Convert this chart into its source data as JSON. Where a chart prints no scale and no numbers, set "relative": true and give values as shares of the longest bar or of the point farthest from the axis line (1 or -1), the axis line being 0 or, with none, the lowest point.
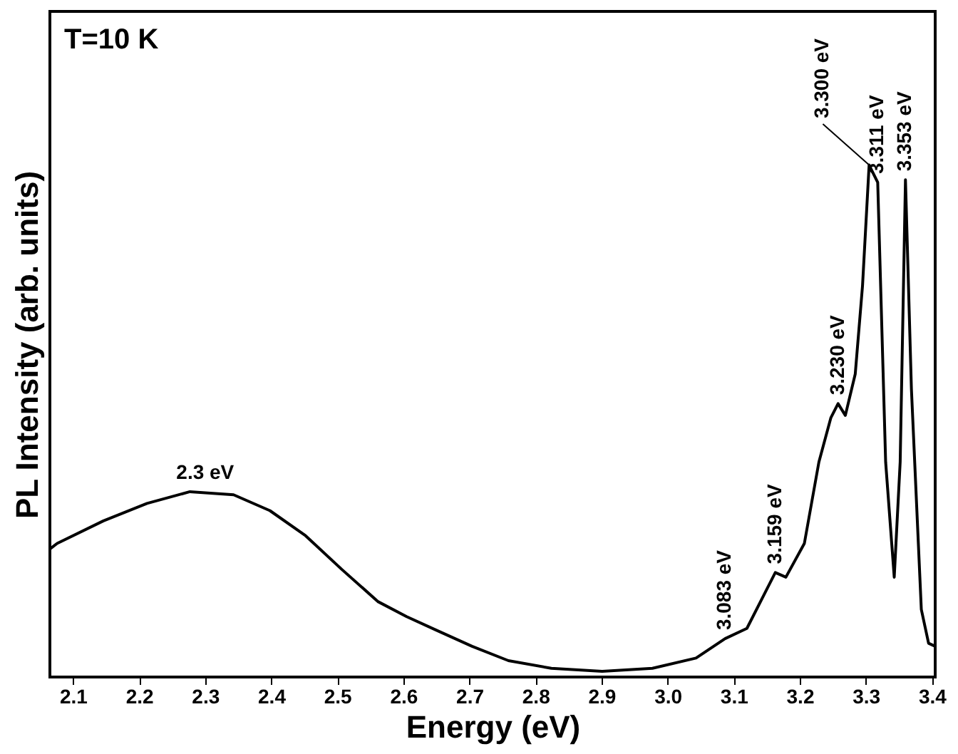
{
  "chart_data": {
    "type": "line",
    "relative": true,
    "xlabel": "Energy (eV)",
    "ylabel": "PL Intensity (arb. units)",
    "color": "#000000",
    "xlim": [
      2.065,
      3.405
    ],
    "xticks": [
      2.1,
      2.2,
      2.3,
      2.4,
      2.5,
      2.6,
      2.7,
      2.8,
      2.9,
      {
        "value": 3,
        "label": "3.0"
      },
      3.1,
      3.2,
      3.3,
      3.4
    ],
    "grid": false,
    "x": [
      2.065,
      2.076,
      2.146,
      2.212,
      2.277,
      2.343,
      2.398,
      2.452,
      2.507,
      2.562,
      2.605,
      2.649,
      2.704,
      2.759,
      2.824,
      2.901,
      2.977,
      3.043,
      3.087,
      3.12,
      3.146,
      3.163,
      3.179,
      3.207,
      3.229,
      3.247,
      3.258,
      3.269,
      3.284,
      3.295,
      3.305,
      3.318,
      3.33,
      3.343,
      3.352,
      3.36,
      3.369,
      3.384,
      3.395,
      3.405
    ],
    "values": [
      0.25,
      0.261,
      0.305,
      0.339,
      0.362,
      0.356,
      0.325,
      0.276,
      0.21,
      0.147,
      0.118,
      0.092,
      0.06,
      0.032,
      0.017,
      0.011,
      0.017,
      0.037,
      0.075,
      0.095,
      0.161,
      0.204,
      0.195,
      0.261,
      0.42,
      0.506,
      0.534,
      0.511,
      0.592,
      0.764,
      1.0,
      0.966,
      0.42,
      0.195,
      0.42,
      0.971,
      0.563,
      0.132,
      0.066,
      0.06
    ],
    "annotations": [
      "T=10 K",
      {
        "text": "2.3 eV",
        "x": 2.3,
        "y": 0.362
      },
      {
        "text": "3.083 eV",
        "x": 3.087,
        "y": 0.075
      },
      {
        "text": "3.159 eV",
        "x": 3.163,
        "y": 0.204
      },
      {
        "text": "3.230 eV",
        "x": 3.258,
        "y": 0.534
      },
      {
        "text": "3.300 eV",
        "x": 3.305,
        "y": 1.0
      },
      {
        "text": "3.311 eV",
        "x": 3.318,
        "y": 0.966
      },
      {
        "text": "3.353 eV",
        "x": 3.36,
        "y": 0.971
      }
    ]
  }
}
